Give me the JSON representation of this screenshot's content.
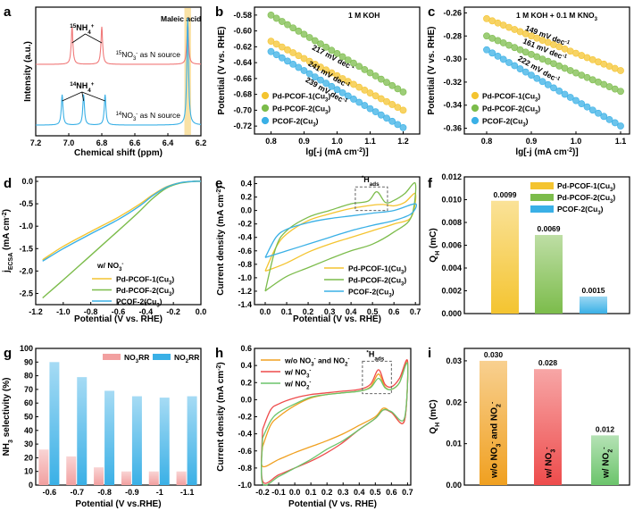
{
  "colors": {
    "yellow": "#f4c430",
    "green": "#7cbc4b",
    "blue": "#3ab0e6",
    "red": "#ee4c4c",
    "salmon": "#f07a7a",
    "pink": "#f2a0a0",
    "orange": "#f0a020",
    "lightgreen": "#6bc46b",
    "highlight": "#f9e2a6"
  },
  "chart_data": [
    {
      "panel": "a",
      "type": "line",
      "xlabel": "Chemical shift (ppm)",
      "ylabel": "Intensity (a.u.)",
      "xlim": [
        7.2,
        6.2
      ],
      "x_reversed": true,
      "xticks": [
        "7.2",
        "7.0",
        "6.8",
        "6.6",
        "6.4",
        "6.2"
      ],
      "annotations": [
        "Maleic acid",
        "15NH4+",
        "14NH4+"
      ],
      "series": [
        {
          "name": "15NO3- as N source",
          "color": "#f07a7a",
          "peaks_ppm": [
            6.98,
            6.8,
            6.28
          ],
          "baseline": "upper"
        },
        {
          "name": "14NO3- as N source",
          "color": "#3ab0e6",
          "peaks_ppm": [
            7.04,
            6.91,
            6.78,
            6.28
          ],
          "baseline": "lower"
        }
      ]
    },
    {
      "panel": "b",
      "type": "scatter",
      "xlabel": "lg[-j (mA cm-2)]",
      "ylabel": "Potential (V vs. RHE)",
      "condition": "1 M KOH",
      "xlim": [
        0.75,
        1.25
      ],
      "ylim": [
        -0.73,
        -0.57
      ],
      "xticks": [
        "0.8",
        "0.9",
        "1.0",
        "1.1",
        "1.2"
      ],
      "yticks": [
        "-0.58",
        "-0.60",
        "-0.62",
        "-0.64",
        "-0.66",
        "-0.68",
        "-0.70",
        "-0.72"
      ],
      "series": [
        {
          "name": "Pd-PCOF-1(Cu3)",
          "color": "#f4c430",
          "x": [
            0.8,
            1.2
          ],
          "y": [
            -0.613,
            -0.7
          ],
          "tafel": "217 mV dec-1"
        },
        {
          "name": "Pd-PCOF-2(Cu3)",
          "color": "#7cbc4b",
          "x": [
            0.8,
            1.2
          ],
          "y": [
            -0.58,
            -0.677
          ],
          "tafel": "241 mV dec-1"
        },
        {
          "name": "PCOF-2(Cu3)",
          "color": "#3ab0e6",
          "x": [
            0.8,
            1.2
          ],
          "y": [
            -0.626,
            -0.722
          ],
          "tafel": "239 mV dec-1"
        }
      ]
    },
    {
      "panel": "c",
      "type": "scatter",
      "xlabel": "lg[-j (mA cm-2)]",
      "ylabel": "Potential (V vs. RHE)",
      "condition": "1 M KOH + 0.1 M KNO3",
      "xlim": [
        0.75,
        1.12
      ],
      "ylim": [
        -0.365,
        -0.255
      ],
      "xticks": [
        "0.8",
        "0.9",
        "1.0",
        "1.1"
      ],
      "yticks": [
        "-0.26",
        "-0.28",
        "-0.30",
        "-0.32",
        "-0.34",
        "-0.36"
      ],
      "series": [
        {
          "name": "Pd-PCOF-1(Cu3)",
          "color": "#f4c430",
          "x": [
            0.8,
            1.1
          ],
          "y": [
            -0.265,
            -0.31
          ],
          "tafel": "149 mV dec-1"
        },
        {
          "name": "Pd-PCOF-2(Cu3)",
          "color": "#7cbc4b",
          "x": [
            0.8,
            1.1
          ],
          "y": [
            -0.28,
            -0.328
          ],
          "tafel": "161 mV dec-1"
        },
        {
          "name": "PCOF-2(Cu3)",
          "color": "#3ab0e6",
          "x": [
            0.8,
            1.1
          ],
          "y": [
            -0.292,
            -0.358
          ],
          "tafel": "222 mV dec-1"
        }
      ]
    },
    {
      "panel": "d",
      "type": "line",
      "xlabel": "Potential (V vs. RHE)",
      "ylabel": "jECSA (mA cm-2)",
      "xlim": [
        -1.2,
        0.0
      ],
      "ylim": [
        -2.75,
        0.1
      ],
      "xticks": [
        "-1.2",
        "-1.0",
        "-0.8",
        "-0.6",
        "-0.4",
        "-0.2",
        "0.0"
      ],
      "yticks": [
        "0.0",
        "-0.5",
        "-1.0",
        "-1.5",
        "-2.0",
        "-2.5"
      ],
      "legend_title": "w/ NO3-",
      "series": [
        {
          "name": "Pd-PCOF-1(Cu3)",
          "color": "#f4c430",
          "x": [
            -1.15,
            -1.0,
            -0.8,
            -0.6,
            -0.45,
            -0.35,
            -0.25,
            -0.15,
            -0.05,
            0.0
          ],
          "y": [
            -1.75,
            -1.45,
            -1.12,
            -0.8,
            -0.52,
            -0.3,
            -0.12,
            -0.03,
            0.0,
            0.0
          ]
        },
        {
          "name": "Pd-PCOF-2(Cu3)",
          "color": "#7cbc4b",
          "x": [
            -1.15,
            -1.0,
            -0.8,
            -0.6,
            -0.45,
            -0.35,
            -0.25,
            -0.15,
            -0.05,
            0.0
          ],
          "y": [
            -2.6,
            -2.2,
            -1.65,
            -1.1,
            -0.68,
            -0.38,
            -0.15,
            -0.04,
            0.0,
            0.0
          ]
        },
        {
          "name": "PCOF-2(Cu3)",
          "color": "#3ab0e6",
          "x": [
            -1.15,
            -1.0,
            -0.8,
            -0.6,
            -0.45,
            -0.35,
            -0.25,
            -0.15,
            -0.05,
            0.0
          ],
          "y": [
            -1.78,
            -1.5,
            -1.17,
            -0.85,
            -0.56,
            -0.32,
            -0.13,
            -0.03,
            0.0,
            0.0
          ]
        }
      ]
    },
    {
      "panel": "e",
      "type": "line",
      "xlabel": "Potential (V vs. RHE)",
      "ylabel": "Current density (mA cm-2)",
      "xlim": [
        -0.05,
        0.72
      ],
      "ylim": [
        -1.4,
        0.5
      ],
      "xticks": [
        "0.0",
        "0.1",
        "0.2",
        "0.3",
        "0.4",
        "0.5",
        "0.6",
        "0.7"
      ],
      "yticks": [
        "0.4",
        "0.2",
        "0.0",
        "-0.2",
        "-0.4",
        "-0.6",
        "-0.8",
        "-1.0",
        "-1.2",
        "-1.4"
      ],
      "annotation": "*Hads",
      "series": [
        {
          "name": "Pd-PCOF-1(Cu3)",
          "color": "#f4c430",
          "loop": [
            [
              0.0,
              -0.9
            ],
            [
              0.05,
              -0.55
            ],
            [
              0.1,
              -0.35
            ],
            [
              0.2,
              -0.15
            ],
            [
              0.3,
              -0.05
            ],
            [
              0.4,
              0.03
            ],
            [
              0.5,
              0.08
            ],
            [
              0.55,
              0.09
            ],
            [
              0.6,
              0.07
            ],
            [
              0.65,
              0.12
            ],
            [
              0.7,
              0.25
            ],
            [
              0.68,
              -0.1
            ],
            [
              0.6,
              -0.2
            ],
            [
              0.5,
              -0.3
            ],
            [
              0.4,
              -0.4
            ],
            [
              0.3,
              -0.5
            ],
            [
              0.2,
              -0.62
            ],
            [
              0.1,
              -0.78
            ],
            [
              0.02,
              -0.88
            ],
            [
              0.0,
              -0.9
            ]
          ]
        },
        {
          "name": "Pd-PCOF-2(Cu3)",
          "color": "#7cbc4b",
          "loop": [
            [
              0.0,
              -1.2
            ],
            [
              0.05,
              -0.55
            ],
            [
              0.1,
              -0.3
            ],
            [
              0.2,
              -0.1
            ],
            [
              0.3,
              0.0
            ],
            [
              0.4,
              0.1
            ],
            [
              0.48,
              0.14
            ],
            [
              0.52,
              0.28
            ],
            [
              0.56,
              0.12
            ],
            [
              0.6,
              0.15
            ],
            [
              0.65,
              0.25
            ],
            [
              0.7,
              0.4
            ],
            [
              0.68,
              -0.1
            ],
            [
              0.6,
              -0.32
            ],
            [
              0.5,
              -0.5
            ],
            [
              0.4,
              -0.6
            ],
            [
              0.3,
              -0.72
            ],
            [
              0.2,
              -0.85
            ],
            [
              0.1,
              -0.98
            ],
            [
              0.02,
              -1.15
            ],
            [
              0.0,
              -1.2
            ]
          ]
        },
        {
          "name": "PCOF-2(Cu3)",
          "color": "#3ab0e6",
          "loop": [
            [
              0.0,
              -0.7
            ],
            [
              0.05,
              -0.4
            ],
            [
              0.1,
              -0.28
            ],
            [
              0.2,
              -0.18
            ],
            [
              0.3,
              -0.12
            ],
            [
              0.4,
              -0.08
            ],
            [
              0.5,
              -0.04
            ],
            [
              0.6,
              0.0
            ],
            [
              0.7,
              0.1
            ],
            [
              0.68,
              -0.05
            ],
            [
              0.6,
              -0.15
            ],
            [
              0.5,
              -0.22
            ],
            [
              0.4,
              -0.3
            ],
            [
              0.3,
              -0.4
            ],
            [
              0.2,
              -0.5
            ],
            [
              0.1,
              -0.6
            ],
            [
              0.02,
              -0.68
            ],
            [
              0.0,
              -0.7
            ]
          ]
        }
      ]
    },
    {
      "panel": "f",
      "type": "bar",
      "ylabel": "QH (mC)",
      "ylim": [
        0,
        0.012
      ],
      "yticks": [
        "0.000",
        "0.002",
        "0.004",
        "0.006",
        "0.008",
        "0.010",
        "0.012"
      ],
      "categories": [
        "Pd-PCOF-1(Cu3)",
        "Pd-PCOF-2(Cu3)",
        "PCOF-2(Cu3)"
      ],
      "values": [
        0.0099,
        0.0069,
        0.0015
      ],
      "labels": [
        "0.0099",
        "0.0069",
        "0.0015"
      ],
      "colors": [
        "#f4c430",
        "#7cbc4b",
        "#3ab0e6"
      ]
    },
    {
      "panel": "g",
      "type": "bar",
      "xlabel": "Potential (V vs.RHE)",
      "ylabel": "NH3 selectivity (%)",
      "ylim": [
        0,
        100
      ],
      "yticks": [
        "0",
        "10",
        "20",
        "30",
        "40",
        "50",
        "60",
        "70",
        "80",
        "90",
        "100"
      ],
      "categories": [
        "-0.6",
        "-0.7",
        "-0.8",
        "-0.9",
        "-1",
        "-1.1"
      ],
      "series": [
        {
          "name": "NO3RR",
          "color": "#f2a0a0",
          "values": [
            26,
            21,
            13,
            10,
            10,
            10
          ]
        },
        {
          "name": "NO2RR",
          "color": "#3ab0e6",
          "values": [
            90,
            79,
            69,
            65,
            64,
            65
          ]
        }
      ]
    },
    {
      "panel": "h",
      "type": "line",
      "xlabel": "Potential (V vs. RHE)",
      "ylabel": "Current density (mA cm-2)",
      "xlim": [
        -0.25,
        0.72
      ],
      "ylim": [
        -1.0,
        0.6
      ],
      "xticks": [
        "-0.2",
        "-0.1",
        "0.0",
        "0.1",
        "0.2",
        "0.3",
        "0.4",
        "0.5",
        "0.6",
        "0.7"
      ],
      "yticks": [
        "0.6",
        "0.4",
        "0.2",
        "0.0",
        "-0.2",
        "-0.4",
        "-0.6",
        "-0.8",
        "-1.0"
      ],
      "annotation": "*Hads",
      "series": [
        {
          "name": "w/o NO3- and NO2-",
          "color": "#f0a020",
          "loop": [
            [
              -0.2,
              -0.55
            ],
            [
              -0.15,
              -0.3
            ],
            [
              -0.1,
              -0.2
            ],
            [
              0.0,
              -0.07
            ],
            [
              0.1,
              0.02
            ],
            [
              0.2,
              0.06
            ],
            [
              0.3,
              0.08
            ],
            [
              0.4,
              0.1
            ],
            [
              0.47,
              0.15
            ],
            [
              0.52,
              0.3
            ],
            [
              0.56,
              0.15
            ],
            [
              0.6,
              0.12
            ],
            [
              0.65,
              0.2
            ],
            [
              0.7,
              0.45
            ],
            [
              0.68,
              -0.25
            ],
            [
              0.6,
              -0.15
            ],
            [
              0.55,
              -0.1
            ],
            [
              0.5,
              -0.2
            ],
            [
              0.4,
              -0.3
            ],
            [
              0.3,
              -0.4
            ],
            [
              0.2,
              -0.48
            ],
            [
              0.1,
              -0.55
            ],
            [
              0.0,
              -0.62
            ],
            [
              -0.1,
              -0.7
            ],
            [
              -0.2,
              -0.78
            ],
            [
              -0.2,
              -0.55
            ]
          ]
        },
        {
          "name": "w/ NO3-",
          "color": "#ee4c4c",
          "loop": [
            [
              -0.2,
              -0.35
            ],
            [
              -0.15,
              -0.12
            ],
            [
              -0.1,
              -0.05
            ],
            [
              0.0,
              0.02
            ],
            [
              0.1,
              0.06
            ],
            [
              0.2,
              0.08
            ],
            [
              0.3,
              0.1
            ],
            [
              0.4,
              0.12
            ],
            [
              0.47,
              0.18
            ],
            [
              0.52,
              0.35
            ],
            [
              0.56,
              0.18
            ],
            [
              0.6,
              0.15
            ],
            [
              0.65,
              0.25
            ],
            [
              0.7,
              0.45
            ],
            [
              0.68,
              -0.25
            ],
            [
              0.6,
              -0.15
            ],
            [
              0.55,
              -0.12
            ],
            [
              0.5,
              -0.22
            ],
            [
              0.4,
              -0.35
            ],
            [
              0.3,
              -0.5
            ],
            [
              0.2,
              -0.62
            ],
            [
              0.1,
              -0.72
            ],
            [
              0.0,
              -0.8
            ],
            [
              -0.1,
              -0.88
            ],
            [
              -0.2,
              -0.95
            ],
            [
              -0.2,
              -0.35
            ]
          ]
        },
        {
          "name": "w/ NO2-",
          "color": "#6bc46b",
          "loop": [
            [
              -0.2,
              -0.45
            ],
            [
              -0.15,
              -0.25
            ],
            [
              -0.1,
              -0.15
            ],
            [
              0.0,
              -0.05
            ],
            [
              0.1,
              0.03
            ],
            [
              0.2,
              0.06
            ],
            [
              0.3,
              0.08
            ],
            [
              0.4,
              0.1
            ],
            [
              0.47,
              0.14
            ],
            [
              0.52,
              0.25
            ],
            [
              0.56,
              0.14
            ],
            [
              0.6,
              0.12
            ],
            [
              0.65,
              0.2
            ],
            [
              0.7,
              0.42
            ],
            [
              0.68,
              -0.22
            ],
            [
              0.6,
              -0.14
            ],
            [
              0.55,
              -0.12
            ],
            [
              0.5,
              -0.22
            ],
            [
              0.4,
              -0.35
            ],
            [
              0.3,
              -0.48
            ],
            [
              0.2,
              -0.58
            ],
            [
              0.1,
              -0.7
            ],
            [
              0.0,
              -0.8
            ],
            [
              -0.1,
              -0.9
            ],
            [
              -0.2,
              -0.98
            ],
            [
              -0.2,
              -0.45
            ]
          ]
        }
      ]
    },
    {
      "panel": "i",
      "type": "bar",
      "ylabel": "QH (mC)",
      "ylim": [
        0,
        0.033
      ],
      "yticks": [
        "0.00",
        "0.01",
        "0.02",
        "0.03"
      ],
      "categories": [
        "w/o NO3- and NO2-",
        "w/ NO3-",
        "w/ NO2-"
      ],
      "values": [
        0.03,
        0.028,
        0.012
      ],
      "labels": [
        "0.030",
        "0.028",
        "0.012"
      ],
      "colors": [
        "#f0a020",
        "#ee4c4c",
        "#6bc46b"
      ]
    }
  ]
}
